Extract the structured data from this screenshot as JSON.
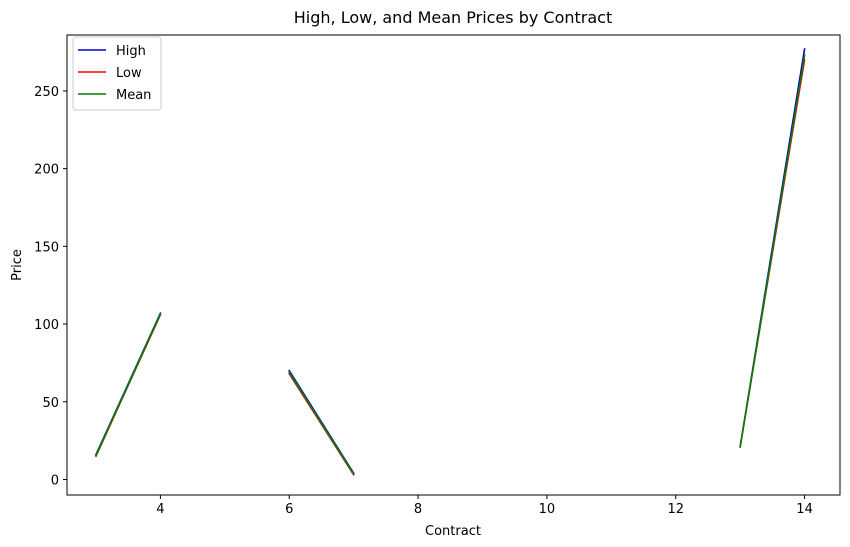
{
  "chart_data": {
    "type": "line",
    "title": "High, Low, and Mean Prices by Contract",
    "xlabel": "Contract",
    "ylabel": "Price",
    "xlim": [
      2.55,
      14.55
    ],
    "ylim": [
      -10,
      286
    ],
    "xticks": [
      4,
      6,
      8,
      10,
      12,
      14
    ],
    "yticks": [
      0,
      50,
      100,
      150,
      200,
      250
    ],
    "grid": false,
    "legend_position": "top-left",
    "series": [
      {
        "name": "High",
        "color": "#0000cc",
        "segments": [
          [
            [
              3,
              16
            ],
            [
              4,
              107
            ]
          ],
          [
            [
              6,
              70
            ],
            [
              7,
              4
            ]
          ],
          [
            [
              13,
              21
            ],
            [
              14,
              277
            ]
          ]
        ]
      },
      {
        "name": "Low",
        "color": "#ff0000",
        "segments": [
          [
            [
              3,
              15
            ],
            [
              4,
              106
            ]
          ],
          [
            [
              6,
              68
            ],
            [
              7,
              3
            ]
          ],
          [
            [
              13,
              21
            ],
            [
              14,
              270
            ]
          ]
        ]
      },
      {
        "name": "Mean",
        "color": "#008000",
        "segments": [
          [
            [
              3,
              15.5
            ],
            [
              4,
              106.5
            ]
          ],
          [
            [
              6,
              69
            ],
            [
              7,
              3.5
            ]
          ],
          [
            [
              13,
              21
            ],
            [
              14,
              273
            ]
          ]
        ]
      }
    ]
  }
}
